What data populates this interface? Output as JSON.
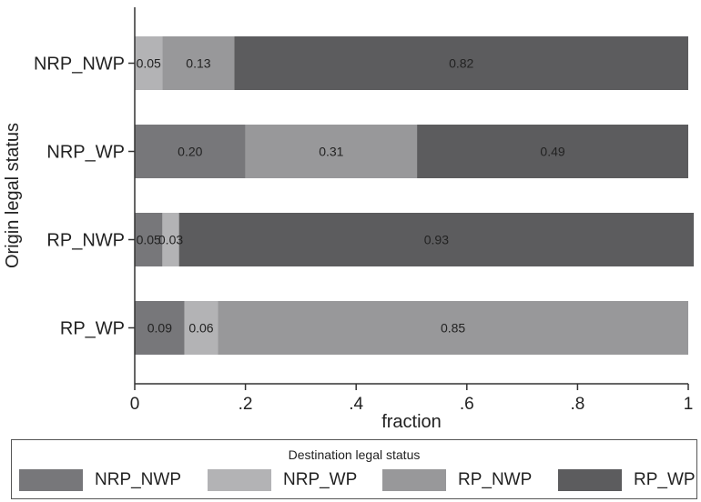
{
  "chart_data": {
    "type": "bar",
    "orientation": "horizontal",
    "stacked": true,
    "ylabel": "Origin legal status",
    "xlabel": "fraction",
    "xlim": [
      0,
      1
    ],
    "xticks": [
      "0",
      ".2",
      ".4",
      ".6",
      ".8",
      "1"
    ],
    "xtick_values": [
      0,
      0.2,
      0.4,
      0.6,
      0.8,
      1
    ],
    "categories": [
      "NRP_NWP",
      "NRP_WP",
      "RP_NWP",
      "RP_WP"
    ],
    "legend_title": "Destination legal status",
    "legend_position": "bottom",
    "grid": false,
    "series": [
      {
        "name": "NRP_NWP",
        "color": "#77777a",
        "values": [
          0.0,
          0.2,
          0.05,
          0.09
        ],
        "labels": [
          "",
          "0.20",
          "0.05",
          "0.09"
        ]
      },
      {
        "name": "NRP_WP",
        "color": "#b3b3b5",
        "values": [
          0.05,
          0.0,
          0.03,
          0.06
        ],
        "labels": [
          "0.05",
          "",
          "0.03",
          "0.06"
        ]
      },
      {
        "name": "RP_NWP",
        "color": "#98989a",
        "values": [
          0.13,
          0.31,
          0.0,
          0.85
        ],
        "labels": [
          "0.13",
          "0.31",
          "",
          "0.85"
        ]
      },
      {
        "name": "RP_WP",
        "color": "#5c5c5e",
        "values": [
          0.82,
          0.49,
          0.93,
          0.0
        ],
        "labels": [
          "0.82",
          "0.49",
          "0.93",
          ""
        ]
      }
    ]
  }
}
